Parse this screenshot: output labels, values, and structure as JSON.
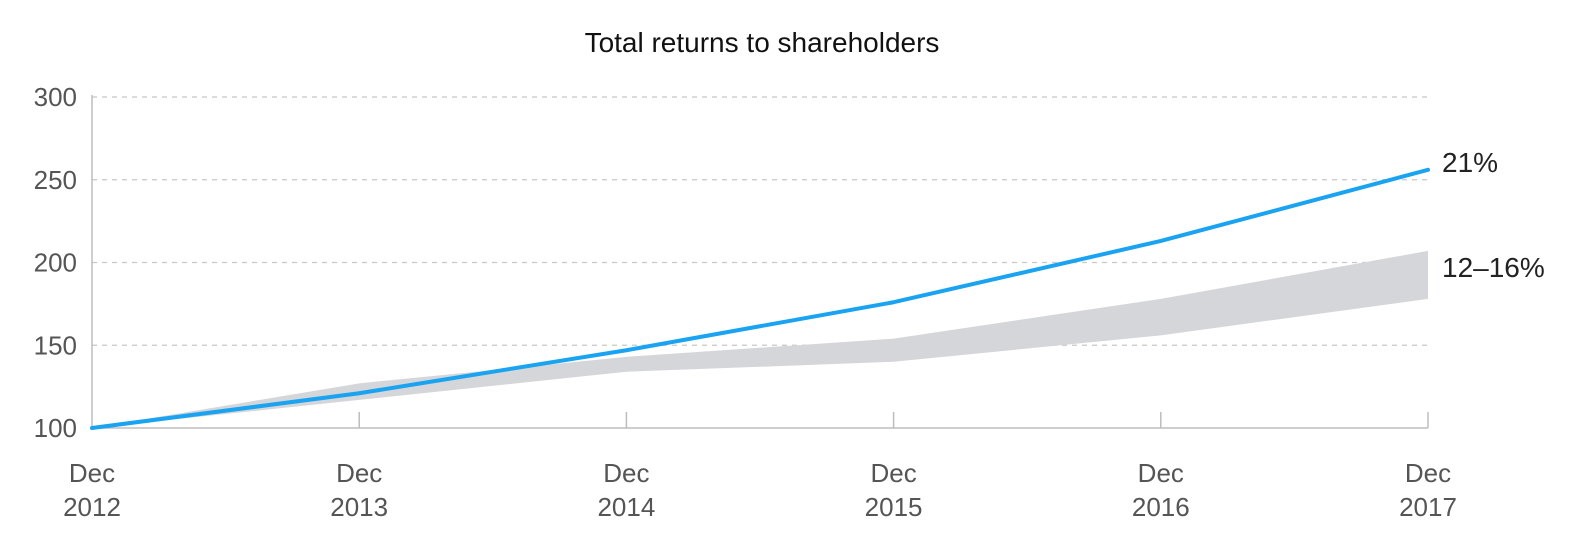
{
  "chart_data": {
    "type": "line",
    "title": "Total returns to shareholders",
    "xlabel": "",
    "ylabel": "",
    "ylim": [
      100,
      300
    ],
    "yticks": [
      "100",
      "150",
      "200",
      "250",
      "300"
    ],
    "grid": true,
    "categories": [
      {
        "month": "Dec",
        "year": "2012"
      },
      {
        "month": "Dec",
        "year": "2013"
      },
      {
        "month": "Dec",
        "year": "2014"
      },
      {
        "month": "Dec",
        "year": "2015"
      },
      {
        "month": "Dec",
        "year": "2016"
      },
      {
        "month": "Dec",
        "year": "2017"
      }
    ],
    "series": [
      {
        "values": [
          100,
          121,
          147,
          176,
          213,
          256
        ],
        "color": "#1aa3f0",
        "end_label": "21%"
      }
    ],
    "band": {
      "upper": [
        100,
        127,
        143,
        154,
        178,
        207
      ],
      "lower": [
        100,
        117,
        134,
        140,
        156,
        178
      ],
      "color": "#d5d6d9",
      "end_label": "12–16%"
    }
  }
}
